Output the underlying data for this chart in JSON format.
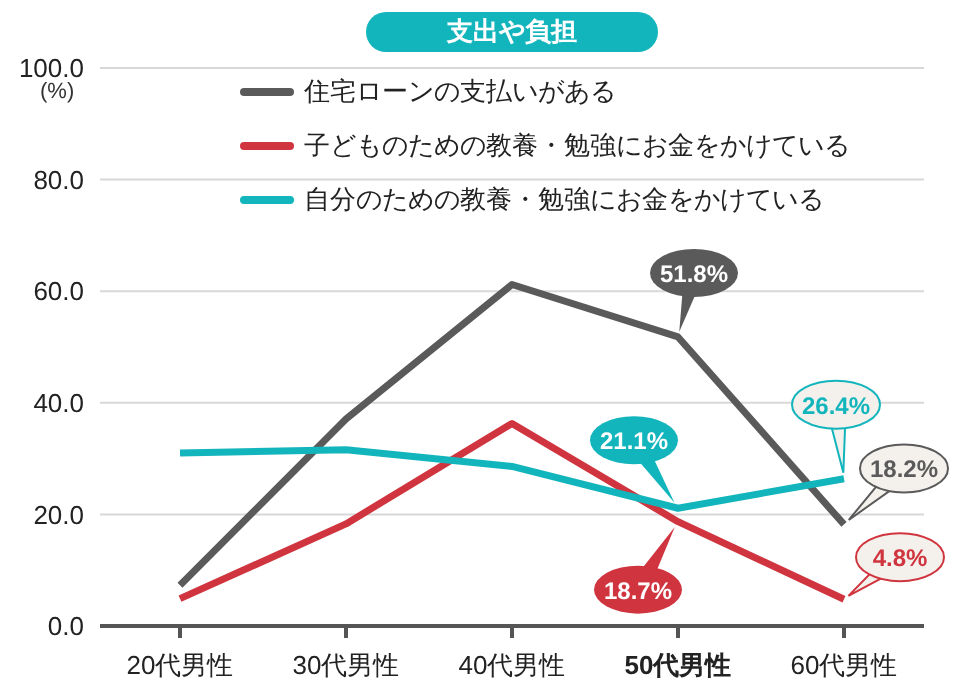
{
  "chart_data": {
    "type": "line",
    "title": "支出や負担",
    "ylabel": "(%)",
    "categories": [
      "20代男性",
      "30代男性",
      "40代男性",
      "50代男性",
      "60代男性"
    ],
    "series": [
      {
        "name": "住宅ローンの支払いがある",
        "color": "#5a5a5a",
        "values": [
          7.3,
          37.1,
          61.2,
          51.8,
          18.2
        ],
        "value_labels": [
          null,
          null,
          null,
          "51.8%",
          "18.2%"
        ]
      },
      {
        "name": "子どものための教養・勉強にお金をかけている",
        "color": "#d0353f",
        "values": [
          4.9,
          18.3,
          36.3,
          18.7,
          4.8
        ],
        "value_labels": [
          null,
          null,
          null,
          "18.7%",
          "4.8%"
        ]
      },
      {
        "name": "自分のための教養・勉強にお金をかけている",
        "color": "#13b5bd",
        "values": [
          31.0,
          31.6,
          28.6,
          21.1,
          26.4
        ],
        "value_labels": [
          null,
          null,
          null,
          "21.1%",
          "26.4%"
        ]
      }
    ],
    "ylim": [
      0,
      100
    ],
    "yticks": [
      {
        "value": 0,
        "label": "0.0"
      },
      {
        "value": 20,
        "label": "20.0"
      },
      {
        "value": 40,
        "label": "40.0"
      },
      {
        "value": 60,
        "label": "60.0"
      },
      {
        "value": 80,
        "label": "80.0"
      },
      {
        "value": 100,
        "label": "100.0"
      }
    ],
    "grid": "y",
    "legend": "top",
    "marker": "none",
    "line_style": "solid"
  }
}
